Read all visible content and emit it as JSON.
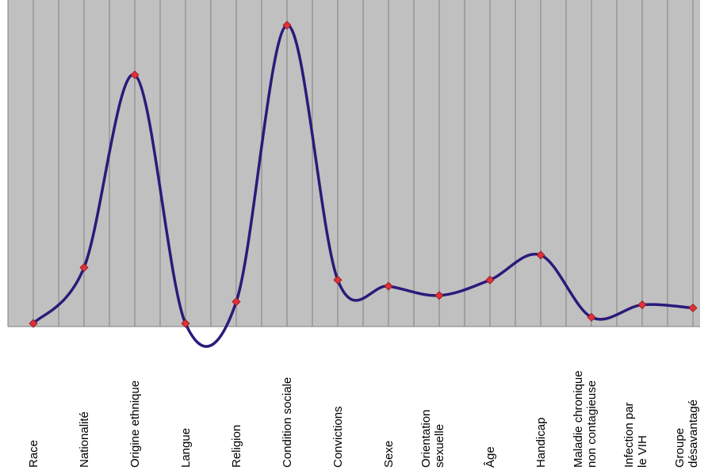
{
  "chart_data": {
    "type": "line",
    "title": "",
    "xlabel": "",
    "ylabel": "",
    "ylim": [
      0,
      100
    ],
    "grid": true,
    "categories": [
      "Race",
      "Nationalité",
      "Origine ethnique",
      "Langue",
      "Religion",
      "Condition sociale",
      "Convictions",
      "Sexe",
      "Orientation sexuelle",
      "Âge",
      "Handicap",
      "Maladie chronique non contagieuse",
      "Infection par le VIH",
      "Groupe désavantagé"
    ],
    "category_label_lines": [
      [
        "Race"
      ],
      [
        "Nationalité"
      ],
      [
        "Origine ethnique"
      ],
      [
        "Langue"
      ],
      [
        "Religion"
      ],
      [
        "Condition sociale"
      ],
      [
        "Convictions"
      ],
      [
        "Sexe"
      ],
      [
        "Orientation",
        "sexuelle"
      ],
      [
        "Âge"
      ],
      [
        "Handicap"
      ],
      [
        "Maladie chronique",
        "non contagieuse"
      ],
      [
        "Infection par",
        "le VIH"
      ],
      [
        "Groupe",
        "désavantagé"
      ]
    ],
    "series": [
      {
        "values": [
          1,
          19,
          81,
          1,
          8,
          97,
          15,
          13,
          10,
          15,
          23,
          3,
          7,
          6
        ]
      }
    ],
    "colors": {
      "plot_background": "#c0c0c0",
      "grid": "#7f7f7f",
      "line": "#2b1a7a",
      "marker": "#e0303a",
      "marker_edge": "#8b1a1a"
    }
  }
}
